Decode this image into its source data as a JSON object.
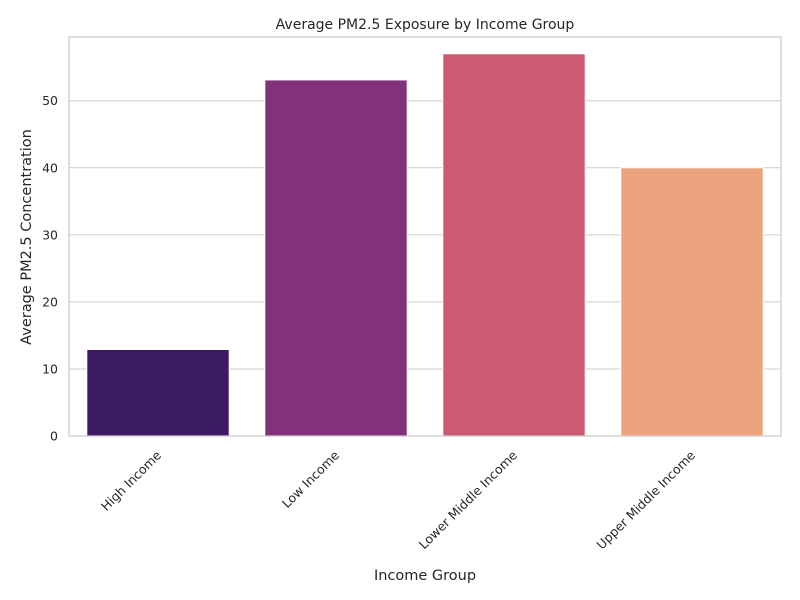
{
  "chart_data": {
    "type": "bar",
    "title": "Average PM2.5 Exposure by Income Group",
    "xlabel": "Income Group",
    "ylabel": "Average PM2.5 Concentration",
    "categories": [
      "High Income",
      "Low Income",
      "Lower Middle Income",
      "Upper Middle Income"
    ],
    "values": [
      12.9,
      53.1,
      57.0,
      40.0
    ],
    "colors": [
      "#3c1a64",
      "#82327a",
      "#cc5a72",
      "#eda47e"
    ],
    "ylim": [
      0,
      59.5
    ],
    "yticks": [
      0,
      10,
      20,
      30,
      40,
      50
    ],
    "grid": "horizontal",
    "legend": "none"
  }
}
